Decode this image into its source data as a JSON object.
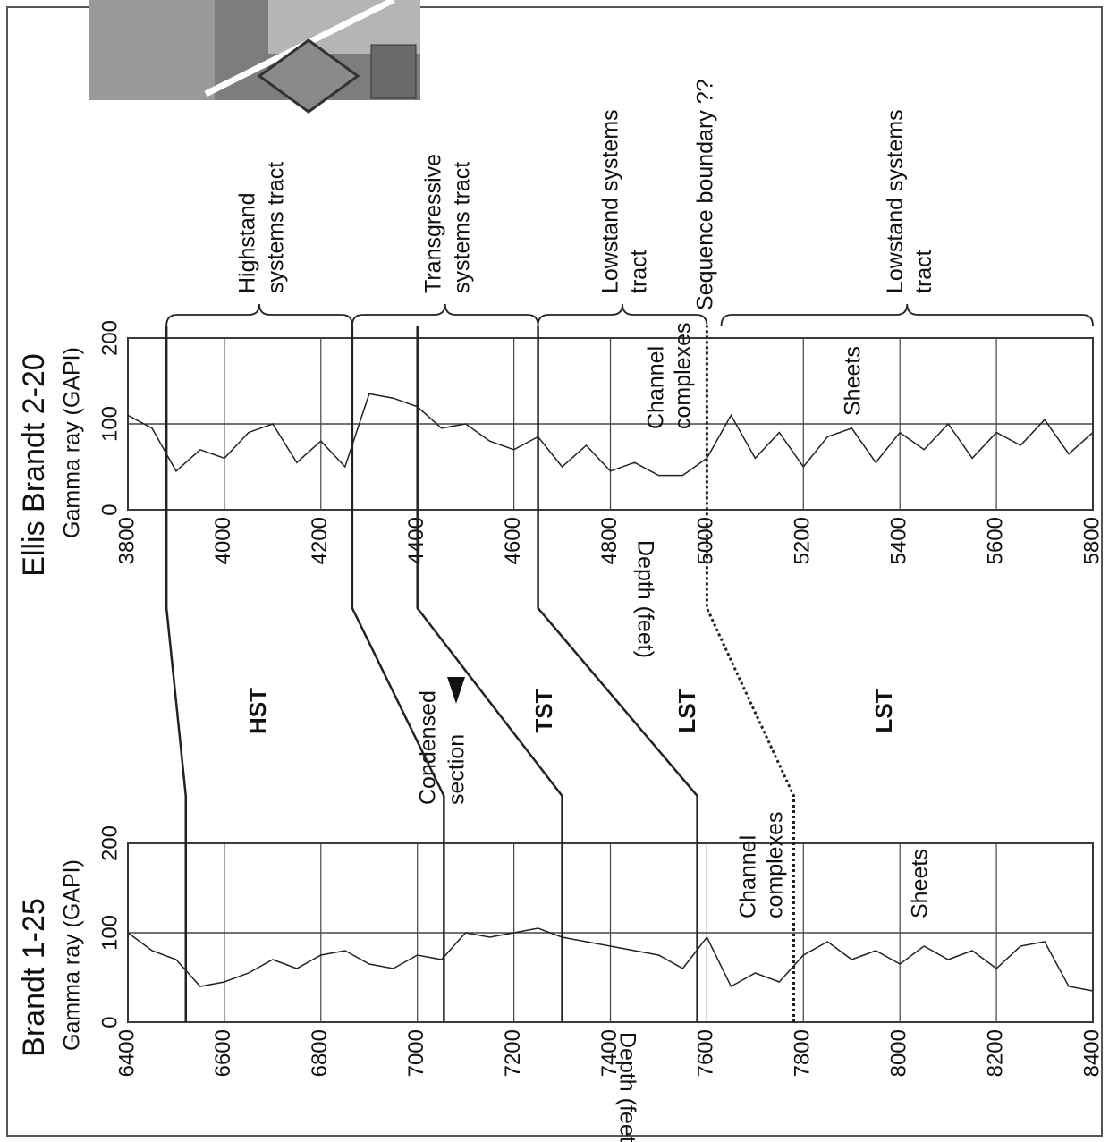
{
  "chart_data": [
    {
      "type": "line",
      "title": "Ellis Brandt 2-20",
      "y_label": "Gamma ray (GAPI)",
      "x_label": "Depth (feet)",
      "x": [
        3800,
        3850,
        3900,
        3950,
        4000,
        4050,
        4100,
        4150,
        4200,
        4250,
        4300,
        4350,
        4400,
        4450,
        4500,
        4550,
        4600,
        4650,
        4700,
        4750,
        4800,
        4850,
        4900,
        4950,
        5000,
        5050,
        5100,
        5150,
        5200,
        5250,
        5300,
        5350,
        5400,
        5450,
        5500,
        5550,
        5600,
        5650,
        5700,
        5750,
        5800
      ],
      "series": [
        {
          "color": "#222222",
          "values": [
            110,
            95,
            45,
            70,
            60,
            90,
            100,
            55,
            80,
            50,
            135,
            130,
            120,
            95,
            100,
            80,
            70,
            85,
            50,
            75,
            45,
            55,
            40,
            40,
            60,
            110,
            60,
            90,
            50,
            85,
            95,
            55,
            90,
            70,
            100,
            60,
            90,
            75,
            105,
            65,
            90
          ]
        }
      ],
      "xlim": [
        3800,
        5800
      ],
      "xticks": [
        3800,
        4000,
        4200,
        4400,
        4600,
        4800,
        5000,
        5200,
        5400,
        5600,
        5800
      ],
      "ylim": [
        0,
        200
      ],
      "yticks": [
        0,
        100,
        200
      ],
      "grid": true,
      "brackets": [
        {
          "from": 3880,
          "to": 4265,
          "label": [
            "Highstand",
            "systems tract"
          ]
        },
        {
          "from": 4265,
          "to": 4650,
          "label": [
            "Transgressive",
            "systems tract"
          ]
        },
        {
          "from": 4650,
          "to": 5000,
          "label": [
            "Lowstand systems",
            "tract"
          ]
        },
        {
          "from": 5030,
          "to": 5800,
          "label": [
            "Lowstand systems",
            "tract"
          ]
        }
      ],
      "annotations": [
        [
          "Sequence boundary ??"
        ],
        [
          "Channel",
          "complexes"
        ],
        [
          "Sheets"
        ]
      ]
    },
    {
      "type": "line",
      "title": "Brandt 1-25",
      "y_label": "Gamma ray (GAPI)",
      "x_label": "Depth (feet)",
      "x": [
        6400,
        6450,
        6500,
        6550,
        6600,
        6650,
        6700,
        6750,
        6800,
        6850,
        6900,
        6950,
        7000,
        7050,
        7100,
        7150,
        7200,
        7250,
        7300,
        7350,
        7400,
        7450,
        7500,
        7550,
        7600,
        7650,
        7700,
        7750,
        7800,
        7850,
        7900,
        7950,
        8000,
        8050,
        8100,
        8150,
        8200,
        8250,
        8300,
        8350,
        8400
      ],
      "series": [
        {
          "color": "#222222",
          "values": [
            100,
            80,
            70,
            40,
            45,
            55,
            70,
            60,
            75,
            80,
            65,
            60,
            75,
            70,
            100,
            95,
            100,
            105,
            95,
            90,
            85,
            80,
            75,
            60,
            95,
            40,
            55,
            45,
            75,
            90,
            70,
            80,
            65,
            85,
            70,
            80,
            60,
            85,
            90,
            40,
            35
          ]
        }
      ],
      "xlim": [
        6400,
        8400
      ],
      "xticks": [
        6400,
        6600,
        6800,
        7000,
        7200,
        7400,
        7600,
        7800,
        8000,
        8200,
        8400
      ],
      "ylim": [
        0,
        200
      ],
      "yticks": [
        0,
        100,
        200
      ],
      "grid": true,
      "annotations": [
        [
          "Condensed",
          "section"
        ],
        [
          "Channel",
          "complexes"
        ],
        [
          "Sheets"
        ]
      ]
    }
  ],
  "correlations": [
    {
      "depths": [
        3880,
        6520
      ],
      "style": "solid"
    },
    {
      "depths": [
        4265,
        7055
      ],
      "style": "solid"
    },
    {
      "depths": [
        4400,
        7300
      ],
      "style": "solid"
    },
    {
      "depths": [
        4650,
        7580
      ],
      "style": "solid"
    },
    {
      "depths": [
        5000,
        7780
      ],
      "style": "dotted"
    }
  ],
  "zone_labels": [
    "HST",
    "TST",
    "LST",
    "LST"
  ]
}
